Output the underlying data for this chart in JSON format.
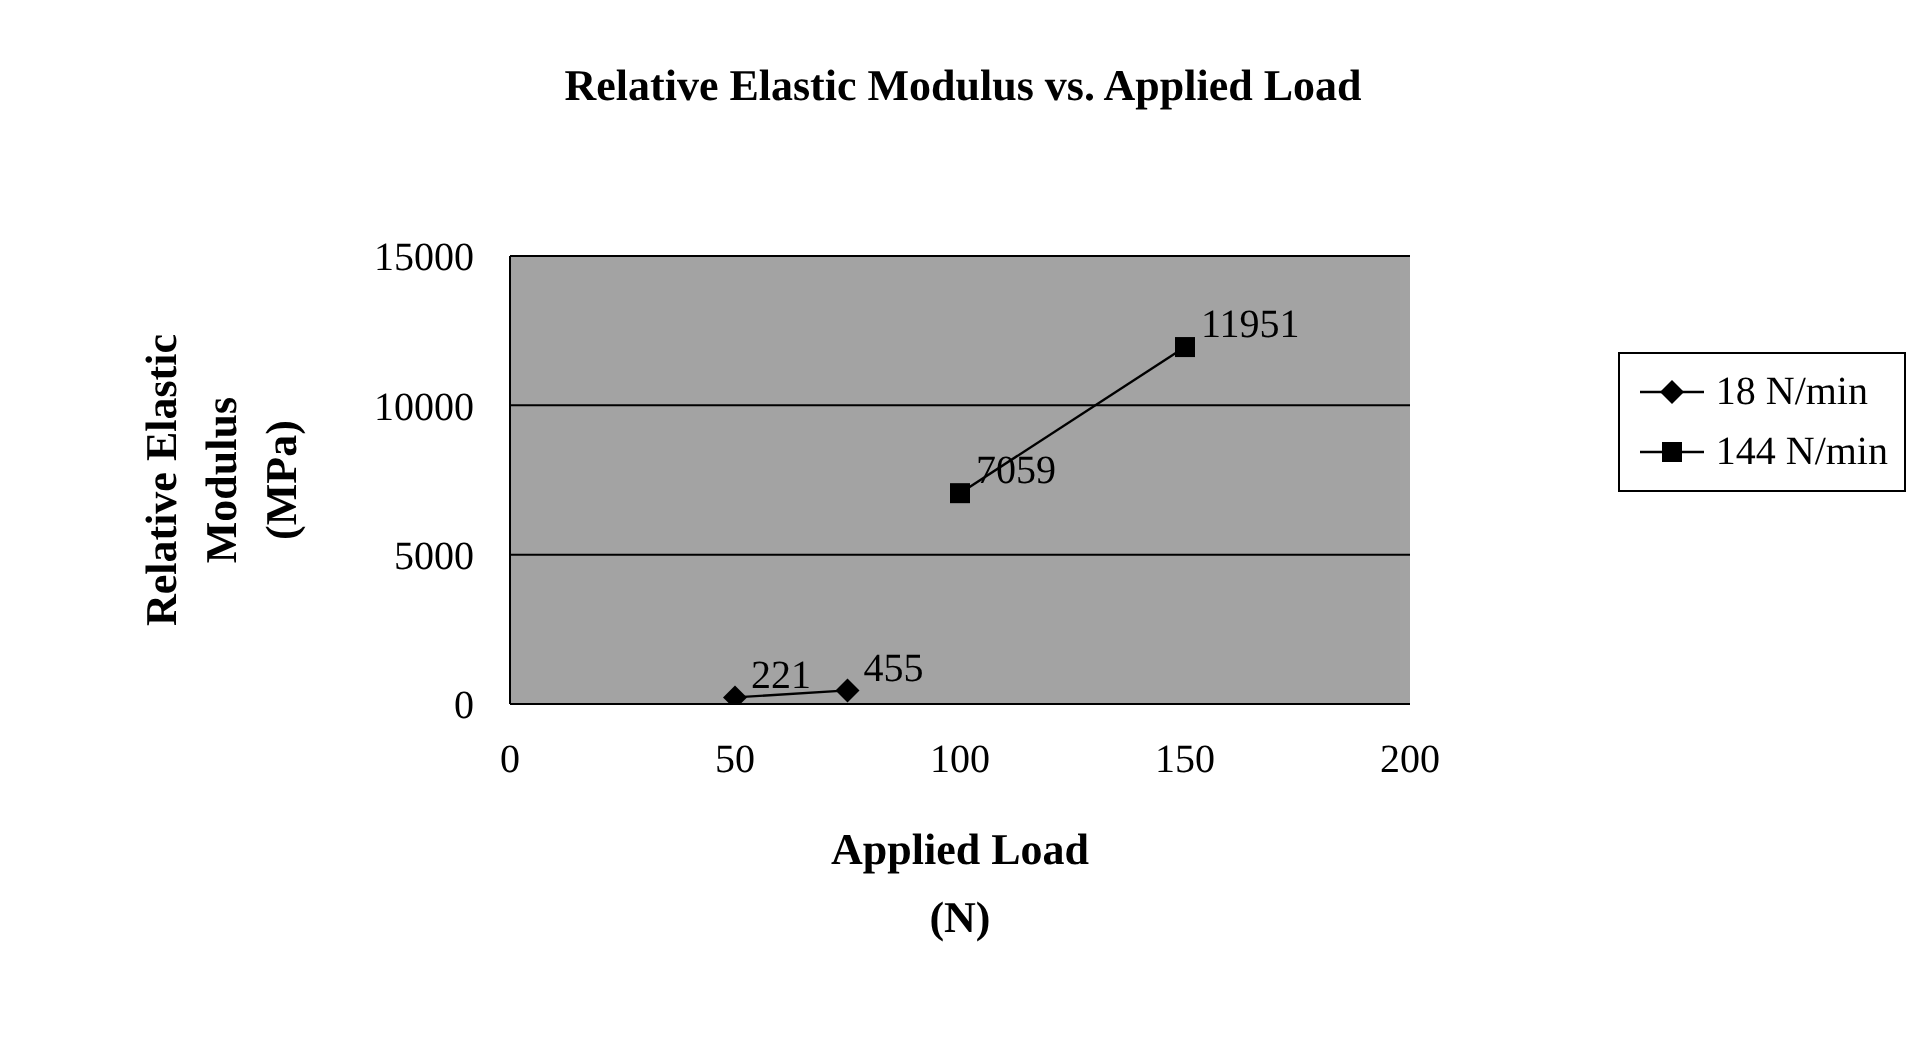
{
  "chart_data": {
    "type": "line",
    "title": "Relative Elastic Modulus vs. Applied Load",
    "xlabel": "Applied Load\n(N)",
    "ylabel": "Relative Elastic\nModulus\n(MPa)",
    "series": [
      {
        "name": "18 N/min",
        "color": "#000000",
        "marker": "diamond",
        "x": [
          50,
          75
        ],
        "values": [
          221,
          455
        ]
      },
      {
        "name": "144 N/min",
        "color": "#000000",
        "marker": "square",
        "x": [
          100,
          150
        ],
        "values": [
          7059,
          11951
        ]
      }
    ],
    "xlim": [
      0,
      200
    ],
    "xticks": [
      0,
      50,
      100,
      150,
      200
    ],
    "ylim": [
      0,
      15000
    ],
    "yticks": [
      0,
      5000,
      10000,
      15000
    ],
    "grid": "y",
    "legend": "right",
    "data_labels": true,
    "line_style": "solid"
  }
}
